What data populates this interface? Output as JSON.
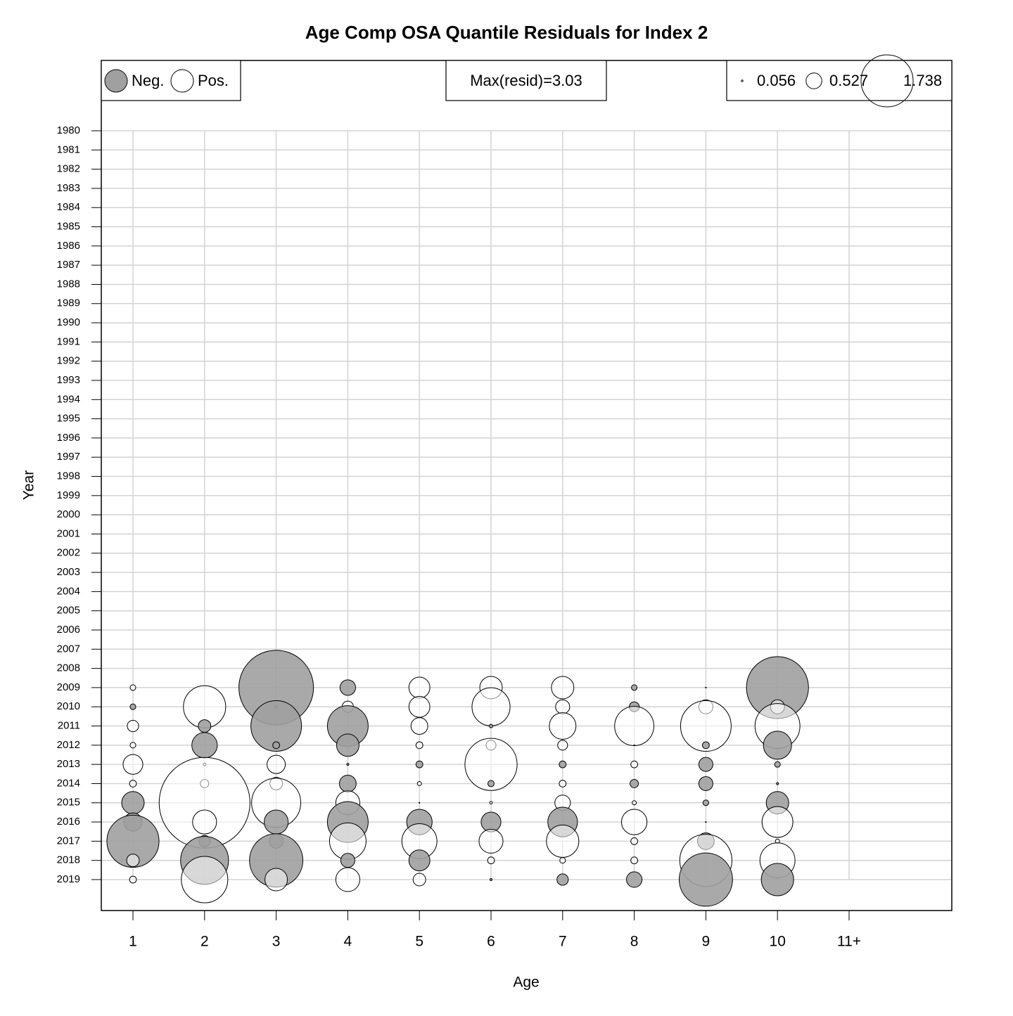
{
  "chart_data": {
    "type": "bubble",
    "title": "Age Comp OSA Quantile Residuals for Index 2",
    "x_label": "Age",
    "y_label": "Year",
    "categories": [
      "1",
      "2",
      "3",
      "4",
      "5",
      "6",
      "7",
      "8",
      "9",
      "10",
      "11+"
    ],
    "years": [
      "1980",
      "1981",
      "1982",
      "1983",
      "1984",
      "1985",
      "1986",
      "1987",
      "1988",
      "1989",
      "1990",
      "1991",
      "1992",
      "1993",
      "1994",
      "1995",
      "1996",
      "1997",
      "1998",
      "1999",
      "2000",
      "2001",
      "2002",
      "2003",
      "2004",
      "2005",
      "2006",
      "2007",
      "2008",
      "2009",
      "2010",
      "2011",
      "2012",
      "2013",
      "2014",
      "2015",
      "2016",
      "2017",
      "2018",
      "2019"
    ],
    "residuals": [
      [
        null,
        null,
        null,
        null,
        null,
        null,
        null,
        null,
        null,
        null,
        null
      ],
      [
        null,
        null,
        null,
        null,
        null,
        null,
        null,
        null,
        null,
        null,
        null
      ],
      [
        null,
        null,
        null,
        null,
        null,
        null,
        null,
        null,
        null,
        null,
        null
      ],
      [
        null,
        null,
        null,
        null,
        null,
        null,
        null,
        null,
        null,
        null,
        null
      ],
      [
        null,
        null,
        null,
        null,
        null,
        null,
        null,
        null,
        null,
        null,
        null
      ],
      [
        null,
        null,
        null,
        null,
        null,
        null,
        null,
        null,
        null,
        null,
        null
      ],
      [
        null,
        null,
        null,
        null,
        null,
        null,
        null,
        null,
        null,
        null,
        null
      ],
      [
        null,
        null,
        null,
        null,
        null,
        null,
        null,
        null,
        null,
        null,
        null
      ],
      [
        null,
        null,
        null,
        null,
        null,
        null,
        null,
        null,
        null,
        null,
        null
      ],
      [
        null,
        null,
        null,
        null,
        null,
        null,
        null,
        null,
        null,
        null,
        null
      ],
      [
        null,
        null,
        null,
        null,
        null,
        null,
        null,
        null,
        null,
        null,
        null
      ],
      [
        null,
        null,
        null,
        null,
        null,
        null,
        null,
        null,
        null,
        null,
        null
      ],
      [
        null,
        null,
        null,
        null,
        null,
        null,
        null,
        null,
        null,
        null,
        null
      ],
      [
        null,
        null,
        null,
        null,
        null,
        null,
        null,
        null,
        null,
        null,
        null
      ],
      [
        null,
        null,
        null,
        null,
        null,
        null,
        null,
        null,
        null,
        null,
        null
      ],
      [
        null,
        null,
        null,
        null,
        null,
        null,
        null,
        null,
        null,
        null,
        null
      ],
      [
        null,
        null,
        null,
        null,
        null,
        null,
        null,
        null,
        null,
        null,
        null
      ],
      [
        null,
        null,
        null,
        null,
        null,
        null,
        null,
        null,
        null,
        null,
        null
      ],
      [
        null,
        null,
        null,
        null,
        null,
        null,
        null,
        null,
        null,
        null,
        null
      ],
      [
        null,
        null,
        null,
        null,
        null,
        null,
        null,
        null,
        null,
        null,
        null
      ],
      [
        null,
        null,
        null,
        null,
        null,
        null,
        null,
        null,
        null,
        null,
        null
      ],
      [
        null,
        null,
        null,
        null,
        null,
        null,
        null,
        null,
        null,
        null,
        null
      ],
      [
        null,
        null,
        null,
        null,
        null,
        null,
        null,
        null,
        null,
        null,
        null
      ],
      [
        null,
        null,
        null,
        null,
        null,
        null,
        null,
        null,
        null,
        null,
        null
      ],
      [
        null,
        null,
        null,
        null,
        null,
        null,
        null,
        null,
        null,
        null,
        null
      ],
      [
        null,
        null,
        null,
        null,
        null,
        null,
        null,
        null,
        null,
        null,
        null
      ],
      [
        null,
        null,
        null,
        null,
        null,
        null,
        null,
        null,
        null,
        null,
        null
      ],
      [
        null,
        null,
        null,
        null,
        null,
        null,
        null,
        null,
        null,
        null,
        null
      ],
      [
        null,
        null,
        null,
        null,
        null,
        null,
        null,
        null,
        null,
        null,
        null
      ],
      [
        0.19,
        null,
        -2.49,
        -0.52,
        0.7,
        0.75,
        0.75,
        -0.19,
        -0.03,
        -2.07,
        null
      ],
      [
        -0.19,
        1.41,
        -0.09,
        0.38,
        0.7,
        1.27,
        0.47,
        -0.33,
        0.47,
        0.47,
        null
      ],
      [
        0.38,
        -0.42,
        -1.69,
        -1.36,
        0.56,
        -0.12,
        0.89,
        1.31,
        1.69,
        1.5,
        null
      ],
      [
        0.19,
        -0.85,
        -0.23,
        -0.75,
        0.23,
        0.33,
        0.33,
        0.03,
        -0.23,
        -0.94,
        null
      ],
      [
        0.66,
        0.09,
        0.61,
        -0.07,
        -0.23,
        1.74,
        -0.23,
        0.23,
        -0.47,
        -0.19,
        null
      ],
      [
        0.23,
        0.28,
        0.42,
        -0.56,
        0.14,
        -0.21,
        0.23,
        -0.28,
        -0.47,
        -0.07,
        null
      ],
      [
        -0.75,
        3.03,
        1.64,
        0.8,
        0.03,
        0.09,
        0.52,
        0.14,
        -0.19,
        -0.75,
        null
      ],
      [
        -0.61,
        0.8,
        -0.8,
        -1.36,
        -0.85,
        -0.66,
        -0.99,
        0.85,
        -0.03,
        1.03,
        null
      ],
      [
        -1.74,
        -0.38,
        -0.47,
        1.22,
        1.17,
        0.8,
        1.08,
        0.23,
        -0.56,
        0.14,
        null
      ],
      [
        0.42,
        -1.6,
        -1.78,
        -0.47,
        -0.7,
        0.23,
        0.19,
        0.23,
        1.74,
        1.17,
        null
      ],
      [
        0.23,
        1.55,
        0.75,
        0.8,
        0.42,
        -0.07,
        -0.38,
        -0.52,
        -1.78,
        -1.08,
        null
      ]
    ],
    "legend": [
      "Neg.",
      "Pos."
    ],
    "neg_color": "#a0a0a0",
    "pos_color": "#ffffff",
    "max_label": "Max(resid)=3.03",
    "size_legend": [
      0.056,
      0.527,
      1.738
    ],
    "grid": true
  }
}
